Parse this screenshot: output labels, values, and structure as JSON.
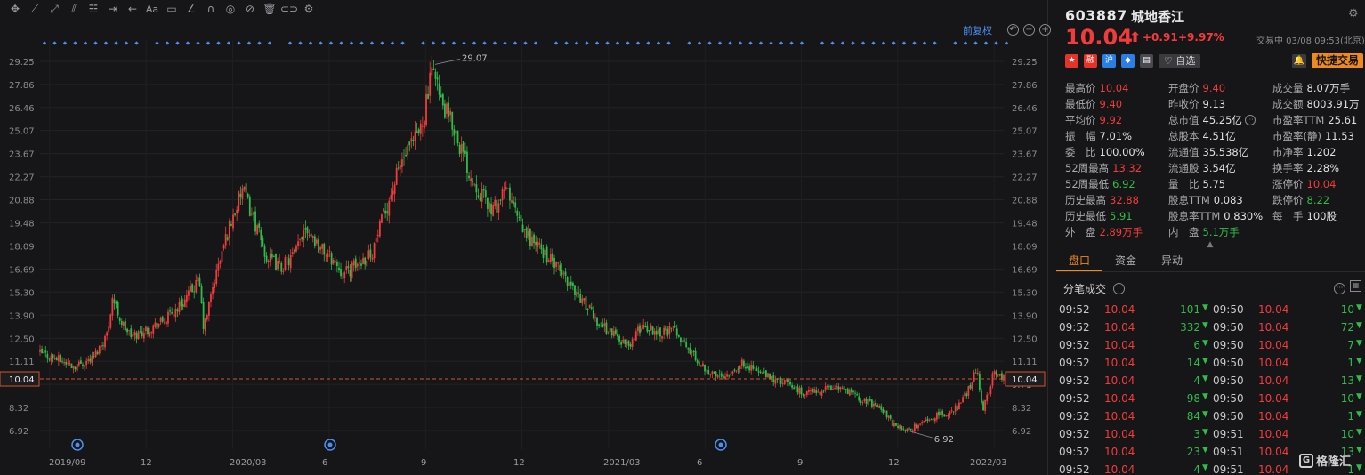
{
  "toolbar": {
    "icons": [
      "move-icon",
      "line-tool-icon",
      "ray-tool-icon",
      "channel-tool-icon",
      "fib-tool-icon",
      "range-tool-icon",
      "arrow-tool-icon",
      "text-tool-icon",
      "comment-tool-icon",
      "ruler-icon",
      "magnet-icon",
      "visibility-icon",
      "hide-icon",
      "trash-icon",
      "link-icon",
      "settings-icon"
    ],
    "text_label": "Aa"
  },
  "chart": {
    "adjust_label": "前复权",
    "price_axis": [
      "29.25",
      "27.86",
      "26.46",
      "25.07",
      "23.67",
      "22.27",
      "20.88",
      "19.48",
      "18.09",
      "16.69",
      "15.30",
      "13.90",
      "12.50",
      "11.11",
      "9.71",
      "8.32",
      "6.92"
    ],
    "time_axis": [
      "2019/09",
      "12",
      "2020/03",
      "6",
      "9",
      "12",
      "2021/03",
      "6",
      "9",
      "12",
      "2022/03"
    ],
    "high_label": "29.07",
    "low_label": "6.92",
    "current_price_left": "10.04",
    "current_price_right": "10.04",
    "colors": {
      "up": "#f23b3b",
      "down": "#2fbd4a",
      "dashline": "#d2542a",
      "dot": "#4d8ff0"
    }
  },
  "chart_data": {
    "type": "candlestick",
    "x_range": [
      "2019/08",
      "2022/03"
    ],
    "ylim": [
      6.92,
      29.25
    ],
    "y_ticks": [
      29.25,
      27.86,
      26.46,
      25.07,
      23.67,
      22.27,
      20.88,
      19.48,
      18.09,
      16.69,
      15.3,
      13.9,
      12.5,
      11.11,
      9.71,
      8.32,
      6.92
    ],
    "max_point": {
      "value": 29.07
    },
    "min_point": {
      "value": 6.92
    },
    "last_price": 10.04,
    "path": [
      [
        0.0,
        11.6
      ],
      [
        0.02,
        11.2
      ],
      [
        0.035,
        10.8
      ],
      [
        0.055,
        11.3
      ],
      [
        0.07,
        12.8
      ],
      [
        0.075,
        15.0
      ],
      [
        0.085,
        13.4
      ],
      [
        0.095,
        12.6
      ],
      [
        0.11,
        13.0
      ],
      [
        0.13,
        13.6
      ],
      [
        0.15,
        14.8
      ],
      [
        0.165,
        16.0
      ],
      [
        0.17,
        13.0
      ],
      [
        0.18,
        15.8
      ],
      [
        0.195,
        19.0
      ],
      [
        0.21,
        21.5
      ],
      [
        0.22,
        20.0
      ],
      [
        0.235,
        17.4
      ],
      [
        0.25,
        16.8
      ],
      [
        0.265,
        17.6
      ],
      [
        0.275,
        19.4
      ],
      [
        0.29,
        18.0
      ],
      [
        0.305,
        17.2
      ],
      [
        0.315,
        16.4
      ],
      [
        0.33,
        17.0
      ],
      [
        0.345,
        17.8
      ],
      [
        0.36,
        20.5
      ],
      [
        0.375,
        23.2
      ],
      [
        0.385,
        24.0
      ],
      [
        0.395,
        25.2
      ],
      [
        0.405,
        28.0
      ],
      [
        0.41,
        29.07
      ],
      [
        0.415,
        26.8
      ],
      [
        0.43,
        25.2
      ],
      [
        0.445,
        22.6
      ],
      [
        0.46,
        21.0
      ],
      [
        0.47,
        20.2
      ],
      [
        0.485,
        21.5
      ],
      [
        0.5,
        19.0
      ],
      [
        0.515,
        18.2
      ],
      [
        0.53,
        17.2
      ],
      [
        0.55,
        15.8
      ],
      [
        0.565,
        14.6
      ],
      [
        0.58,
        13.4
      ],
      [
        0.595,
        12.8
      ],
      [
        0.61,
        12.0
      ],
      [
        0.625,
        13.3
      ],
      [
        0.64,
        12.9
      ],
      [
        0.66,
        13.0
      ],
      [
        0.67,
        12.0
      ],
      [
        0.685,
        11.0
      ],
      [
        0.7,
        10.2
      ],
      [
        0.715,
        10.4
      ],
      [
        0.73,
        11.0
      ],
      [
        0.745,
        10.5
      ],
      [
        0.76,
        10.0
      ],
      [
        0.775,
        9.8
      ],
      [
        0.79,
        9.2
      ],
      [
        0.81,
        9.3
      ],
      [
        0.825,
        9.6
      ],
      [
        0.84,
        9.2
      ],
      [
        0.855,
        8.7
      ],
      [
        0.87,
        8.5
      ],
      [
        0.885,
        7.3
      ],
      [
        0.9,
        6.92
      ],
      [
        0.915,
        7.4
      ],
      [
        0.93,
        7.8
      ],
      [
        0.945,
        8.0
      ],
      [
        0.955,
        8.5
      ],
      [
        0.965,
        9.6
      ],
      [
        0.972,
        10.8
      ],
      [
        0.978,
        8.2
      ],
      [
        0.985,
        9.4
      ],
      [
        0.99,
        10.6
      ],
      [
        1.0,
        10.04
      ]
    ]
  },
  "quote": {
    "code": "603887",
    "name": "城地香江",
    "price": "10.04",
    "arrow": "⬆",
    "change": "+0.91",
    "change_pct": "+9.97%",
    "status_time": "交易中 03/08 09:53(北京)",
    "tags": [
      {
        "name": "cn-flag",
        "text": "★",
        "color": "#e6332a"
      },
      {
        "name": "margin-tag",
        "text": "融",
        "color": "#e6332a"
      },
      {
        "name": "connect-tag",
        "text": "沪",
        "color": "#2a7fe6"
      },
      {
        "name": "badge-tag",
        "text": "◆",
        "color": "#2a7fe6"
      },
      {
        "name": "note-tag",
        "text": "▤",
        "color": "#4a4a4e"
      }
    ],
    "watch_label": "自选",
    "bell_label": "🔔",
    "quick_trade": "快捷交易",
    "stats": [
      [
        [
          "最高价",
          "10.04",
          "red"
        ],
        [
          "开盘价",
          "9.40",
          "red"
        ],
        [
          "成交量",
          "8.07万手",
          ""
        ]
      ],
      [
        [
          "最低价",
          "9.40",
          "red"
        ],
        [
          "昨收价",
          "9.13",
          ""
        ],
        [
          "成交额",
          "8003.91万",
          ""
        ]
      ],
      [
        [
          "平均价",
          "9.92",
          "red"
        ],
        [
          "总市值",
          "45.25亿",
          ""
        ],
        [
          "市盈率TTM",
          "25.61",
          ""
        ]
      ],
      [
        [
          "振　幅",
          "7.01%",
          ""
        ],
        [
          "总股本",
          "4.51亿",
          ""
        ],
        [
          "市盈率(静)",
          "11.53",
          ""
        ]
      ],
      [
        [
          "委　比",
          "100.00%",
          ""
        ],
        [
          "流通值",
          "35.538亿",
          ""
        ],
        [
          "市净率",
          "1.202",
          ""
        ]
      ],
      [
        [
          "52周最高",
          "13.32",
          "red"
        ],
        [
          "流通股",
          "3.54亿",
          ""
        ],
        [
          "换手率",
          "2.28%",
          ""
        ]
      ],
      [
        [
          "52周最低",
          "6.92",
          "green"
        ],
        [
          "量　比",
          "5.75",
          ""
        ],
        [
          "涨停价",
          "10.04",
          "red"
        ]
      ],
      [
        [
          "历史最高",
          "32.88",
          "red"
        ],
        [
          "股息TTM",
          "0.083",
          ""
        ],
        [
          "跌停价",
          "8.22",
          "green"
        ]
      ],
      [
        [
          "历史最低",
          "5.91",
          "green"
        ],
        [
          "股息率TTM",
          "0.830%",
          ""
        ],
        [
          "每　手",
          "100股",
          ""
        ]
      ],
      [
        [
          "外　盘",
          "2.89万手",
          "red"
        ],
        [
          "内　盘",
          "5.1万手",
          "green"
        ],
        [
          "",
          "",
          ""
        ]
      ]
    ],
    "tabs": [
      "盘口",
      "资金",
      "异动"
    ],
    "ticks_title": "分笔成交",
    "ticks": [
      [
        [
          "09:52",
          "10.04",
          "101"
        ],
        [
          "09:50",
          "10.04",
          "10"
        ]
      ],
      [
        [
          "09:52",
          "10.04",
          "332"
        ],
        [
          "09:50",
          "10.04",
          "72"
        ]
      ],
      [
        [
          "09:52",
          "10.04",
          "6"
        ],
        [
          "09:50",
          "10.04",
          "7"
        ]
      ],
      [
        [
          "09:52",
          "10.04",
          "14"
        ],
        [
          "09:50",
          "10.04",
          "1"
        ]
      ],
      [
        [
          "09:52",
          "10.04",
          "4"
        ],
        [
          "09:50",
          "10.04",
          "13"
        ]
      ],
      [
        [
          "09:52",
          "10.04",
          "98"
        ],
        [
          "09:50",
          "10.04",
          "10"
        ]
      ],
      [
        [
          "09:52",
          "10.04",
          "84"
        ],
        [
          "09:50",
          "10.04",
          "1"
        ]
      ],
      [
        [
          "09:52",
          "10.04",
          "3"
        ],
        [
          "09:51",
          "10.04",
          "10"
        ]
      ],
      [
        [
          "09:52",
          "10.04",
          "23"
        ],
        [
          "09:51",
          "10.04",
          "13"
        ]
      ],
      [
        [
          "09:52",
          "10.04",
          "4"
        ],
        [
          "09:51",
          "10.04",
          "1"
        ]
      ]
    ]
  },
  "watermark": "格隆汇"
}
